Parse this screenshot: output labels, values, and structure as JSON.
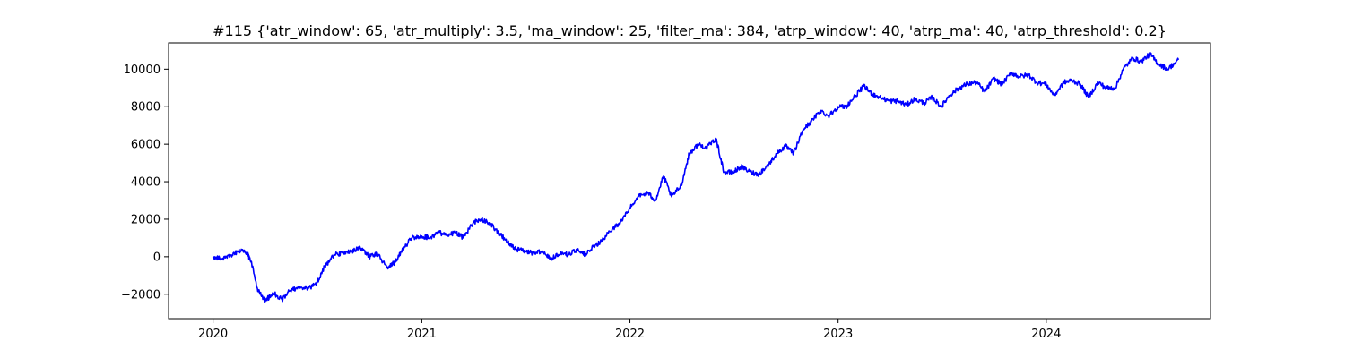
{
  "chart_data": {
    "type": "line",
    "title": "#115 {'atr_window': 65, 'atr_multiply': 3.5, 'ma_window': 25, 'filter_ma': 384, 'atrp_window': 40, 'atrp_ma': 40, 'atrp_threshold': 0.2}",
    "xlabel": "",
    "ylabel": "",
    "x_ticks": [
      "2020",
      "2021",
      "2022",
      "2023",
      "2024"
    ],
    "y_ticks": [
      -2000,
      0,
      2000,
      4000,
      6000,
      8000,
      10000
    ],
    "xlim": [
      "2019-10-15",
      "2024-10-15"
    ],
    "ylim": [
      -3300,
      11400
    ],
    "grid": false,
    "line_color": "#0000ff",
    "series": [
      {
        "x": [
          "2020-01-01",
          "2020-01-15",
          "2020-02-01",
          "2020-02-15",
          "2020-03-01",
          "2020-03-10",
          "2020-03-20",
          "2020-04-01",
          "2020-04-15",
          "2020-05-01",
          "2020-05-15",
          "2020-06-01",
          "2020-06-15",
          "2020-07-01",
          "2020-07-15",
          "2020-08-01",
          "2020-08-15",
          "2020-09-01",
          "2020-09-15",
          "2020-10-01",
          "2020-10-15",
          "2020-11-01",
          "2020-11-15",
          "2020-12-01",
          "2020-12-15",
          "2021-01-01",
          "2021-01-15",
          "2021-02-01",
          "2021-02-15",
          "2021-03-01",
          "2021-03-15",
          "2021-04-01",
          "2021-04-15",
          "2021-05-01",
          "2021-05-15",
          "2021-06-01",
          "2021-06-15",
          "2021-07-01",
          "2021-07-15",
          "2021-08-01",
          "2021-08-15",
          "2021-09-01",
          "2021-09-15",
          "2021-10-01",
          "2021-10-15",
          "2021-11-01",
          "2021-11-15",
          "2021-12-01",
          "2021-12-15",
          "2022-01-01",
          "2022-01-15",
          "2022-02-01",
          "2022-02-15",
          "2022-03-01",
          "2022-03-15",
          "2022-04-01",
          "2022-04-15",
          "2022-05-01",
          "2022-05-15",
          "2022-06-01",
          "2022-06-15",
          "2022-07-01",
          "2022-07-15",
          "2022-08-01",
          "2022-08-15",
          "2022-09-01",
          "2022-09-15",
          "2022-10-01",
          "2022-10-15",
          "2022-11-01",
          "2022-11-15",
          "2022-12-01",
          "2022-12-15",
          "2023-01-01",
          "2023-01-15",
          "2023-02-01",
          "2023-02-15",
          "2023-03-01",
          "2023-03-15",
          "2023-04-01",
          "2023-04-15",
          "2023-05-01",
          "2023-05-15",
          "2023-06-01",
          "2023-06-15",
          "2023-07-01",
          "2023-07-15",
          "2023-08-01",
          "2023-08-15",
          "2023-09-01",
          "2023-09-15",
          "2023-10-01",
          "2023-10-15",
          "2023-11-01",
          "2023-11-15",
          "2023-12-01",
          "2023-12-15",
          "2024-01-01",
          "2024-01-15",
          "2024-02-01",
          "2024-02-15",
          "2024-03-01",
          "2024-03-15",
          "2024-04-01",
          "2024-04-15",
          "2024-05-01",
          "2024-05-15",
          "2024-06-01",
          "2024-06-15",
          "2024-07-01",
          "2024-07-15",
          "2024-08-01",
          "2024-08-20"
        ],
        "y": [
          0,
          -100,
          100,
          300,
          200,
          -500,
          -1800,
          -2400,
          -1900,
          -2300,
          -1800,
          -1600,
          -1700,
          -1400,
          -500,
          100,
          200,
          300,
          500,
          0,
          200,
          -600,
          -300,
          500,
          1000,
          1100,
          1000,
          1300,
          1100,
          1300,
          1000,
          1800,
          2000,
          1800,
          1300,
          800,
          400,
          300,
          200,
          300,
          -100,
          200,
          100,
          400,
          100,
          600,
          900,
          1500,
          1800,
          2600,
          3200,
          3400,
          3000,
          4300,
          3200,
          3800,
          5500,
          6000,
          5800,
          6300,
          4500,
          4500,
          4800,
          4500,
          4400,
          4900,
          5500,
          5900,
          5500,
          6800,
          7200,
          7800,
          7500,
          8000,
          8000,
          8600,
          9100,
          8700,
          8500,
          8300,
          8300,
          8100,
          8400,
          8200,
          8500,
          8000,
          8600,
          9000,
          9200,
          9300,
          8800,
          9500,
          9200,
          9800,
          9600,
          9700,
          9300,
          9200,
          8600,
          9300,
          9400,
          9200,
          8500,
          9300,
          9000,
          9000,
          10000,
          10600,
          10400,
          10800,
          10300,
          10000,
          10500
        ]
      }
    ]
  }
}
